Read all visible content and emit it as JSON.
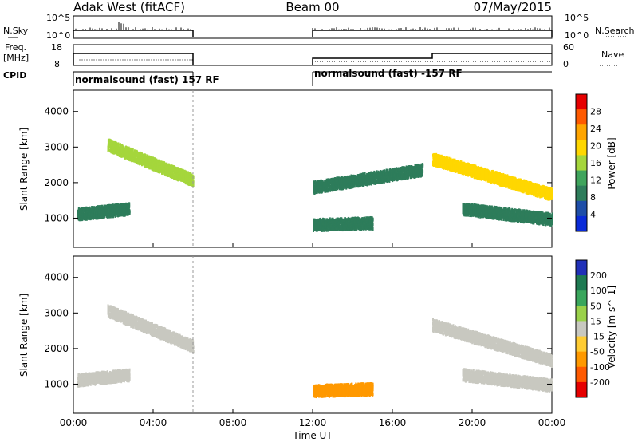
{
  "header": {
    "station": "Adak West (fitACF)",
    "beam": "Beam 00",
    "date": "07/May/2015"
  },
  "panels": {
    "nsky_label": "N.Sky",
    "nsky_ticks": [
      "10^5",
      "10^0"
    ],
    "nsearch_label": "N.Search",
    "nsearch_ticks": [
      "10^5",
      "10^0"
    ],
    "freq_label_1": "Freq.",
    "freq_label_2": "[MHz]",
    "freq_ticks": [
      "18",
      "8"
    ],
    "nave_label": "Nave",
    "nave_ticks": [
      "60",
      "0"
    ],
    "cpid_label": "CPID",
    "cpid_segments": [
      {
        "text": "normalsound (fast) 157 RF",
        "start_h": 0,
        "end_h": 6
      },
      {
        "text": "normalsound (fast) -157 RF",
        "start_h": 12,
        "end_h": 24
      }
    ]
  },
  "chart_data": [
    {
      "type": "heatmap",
      "name": "power",
      "xlabel": "Time UT",
      "ylabel": "Slant Range [km]",
      "xlim": [
        0,
        24
      ],
      "ylim": [
        180,
        4600
      ],
      "xticks": [
        "00:00",
        "04:00",
        "08:00",
        "12:00",
        "16:00",
        "20:00",
        "00:00"
      ],
      "yticks": [
        "1000",
        "2000",
        "3000",
        "4000"
      ],
      "ytick_values": [
        1000,
        2000,
        3000,
        4000
      ],
      "colorbar": {
        "label": "Power [dB]",
        "ticks": [
          "28",
          "24",
          "20",
          "16",
          "12",
          "8",
          "4"
        ],
        "colors": [
          "#e60000",
          "#ff5a00",
          "#ffa500",
          "#ffd700",
          "#a5d63c",
          "#3fa45c",
          "#2e7d5b",
          "#1e4ea8",
          "#0a2bd8"
        ]
      },
      "features": [
        {
          "t0": 1.7,
          "t1": 6.0,
          "r0": 3100,
          "r1": 2100,
          "value": 14
        },
        {
          "t0": 0.2,
          "t1": 2.8,
          "r0": 1150,
          "r1": 1300,
          "value": 4
        },
        {
          "t0": 12.0,
          "t1": 15.0,
          "r0": 850,
          "r1": 900,
          "value": 6
        },
        {
          "t0": 12.0,
          "t1": 17.5,
          "r0": 1900,
          "r1": 2400,
          "value": 5
        },
        {
          "t0": 18.0,
          "t1": 24.0,
          "r0": 2700,
          "r1": 1700,
          "value": 16
        },
        {
          "t0": 19.5,
          "t1": 24.0,
          "r0": 1300,
          "r1": 1000,
          "value": 5
        }
      ]
    },
    {
      "type": "heatmap",
      "name": "velocity",
      "xlabel": "Time UT",
      "ylabel": "Slant Range [km]",
      "xlim": [
        0,
        24
      ],
      "ylim": [
        180,
        4600
      ],
      "xticks": [
        "00:00",
        "04:00",
        "08:00",
        "12:00",
        "16:00",
        "20:00",
        "00:00"
      ],
      "yticks": [
        "1000",
        "2000",
        "3000",
        "4000"
      ],
      "ytick_values": [
        1000,
        2000,
        3000,
        4000
      ],
      "colorbar": {
        "label": "Velocity [m s^-1]",
        "ticks": [
          "200",
          "100",
          "50",
          "15",
          "-15",
          "-50",
          "-100",
          "-200"
        ],
        "colors": [
          "#2030b8",
          "#1e7a52",
          "#3aa65c",
          "#9ad14a",
          "#c8c8c0",
          "#ffcc33",
          "#ff9900",
          "#ff5a00",
          "#e60000"
        ]
      },
      "features": [
        {
          "t0": 1.7,
          "t1": 6.0,
          "r0": 3100,
          "r1": 2100,
          "value": 0
        },
        {
          "t0": 0.2,
          "t1": 2.8,
          "r0": 1150,
          "r1": 1300,
          "value": 0
        },
        {
          "t0": 12.0,
          "t1": 15.0,
          "r0": 850,
          "r1": 900,
          "value": -60
        },
        {
          "t0": 18.0,
          "t1": 24.0,
          "r0": 2700,
          "r1": 1700,
          "value": 0
        },
        {
          "t0": 19.5,
          "t1": 24.0,
          "r0": 1300,
          "r1": 1000,
          "value": 0
        }
      ]
    }
  ]
}
